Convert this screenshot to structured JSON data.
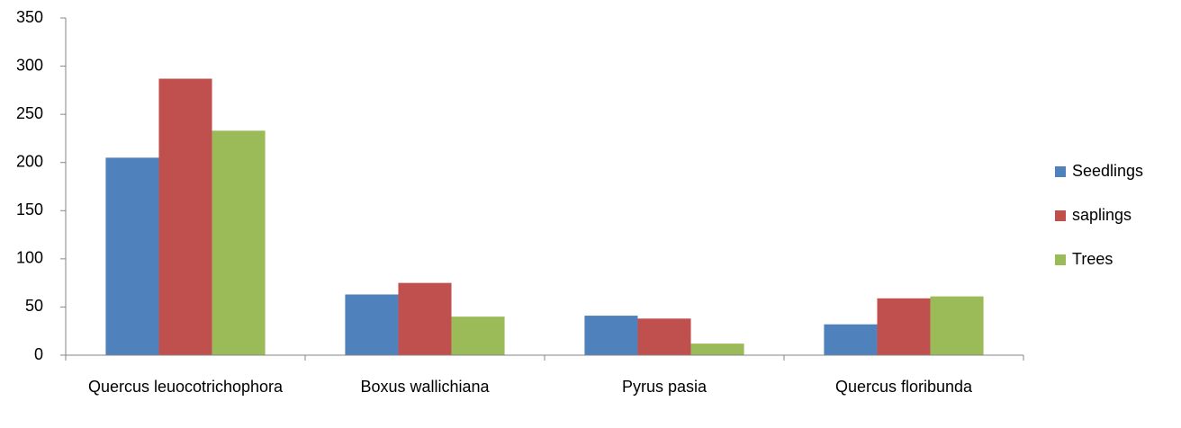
{
  "chart_data": {
    "type": "bar",
    "categories": [
      "Quercus leuocotrichophora",
      "Boxus wallichiana",
      "Pyrus pasia",
      "Quercus floribunda"
    ],
    "series": [
      {
        "name": "Seedlings",
        "color": "#4f81bd",
        "values": [
          205,
          63,
          41,
          32
        ]
      },
      {
        "name": "saplings",
        "color": "#c0504d",
        "values": [
          287,
          75,
          38,
          59
        ]
      },
      {
        "name": "Trees",
        "color": "#9bbb59",
        "values": [
          233,
          40,
          12,
          61
        ]
      }
    ],
    "ylim": [
      0,
      350
    ],
    "yticks": [
      0,
      50,
      100,
      150,
      200,
      250,
      300,
      350
    ],
    "grid": false,
    "legend": "right"
  }
}
